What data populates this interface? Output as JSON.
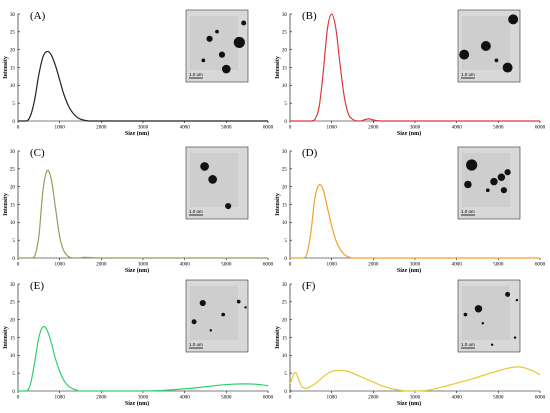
{
  "chart_data": [
    {
      "type": "line",
      "panel": "(A)",
      "color": "#222222",
      "xlabel": "Size (nm)",
      "ylabel": "Intensity",
      "xlim": [
        0,
        6000
      ],
      "ylim": [
        0,
        30
      ],
      "xticks": [
        0,
        1000,
        2000,
        3000,
        4000,
        5000,
        6000
      ],
      "yticks": [
        0,
        5,
        10,
        15,
        20,
        25,
        30
      ],
      "x": [
        0,
        200,
        300,
        400,
        500,
        600,
        700,
        800,
        900,
        1000,
        1100,
        1200,
        1300,
        1400,
        1500,
        1600,
        1700,
        1800,
        2000,
        3000,
        4000,
        5000,
        6000
      ],
      "y": [
        0,
        0,
        1.5,
        6,
        13,
        18,
        19.5,
        18.5,
        15.5,
        11.5,
        7.5,
        4.5,
        2.5,
        1.2,
        0.5,
        0.2,
        0,
        0,
        0,
        0,
        0,
        0,
        0
      ],
      "inset_scale_label": "1.0 um"
    },
    {
      "type": "line",
      "panel": "(B)",
      "color": "#d93a3a",
      "xlabel": "Size (nm)",
      "ylabel": "Intensity",
      "xlim": [
        0,
        6000
      ],
      "ylim": [
        0,
        30
      ],
      "xticks": [
        0,
        1000,
        2000,
        3000,
        4000,
        5000,
        6000
      ],
      "yticks": [
        0,
        5,
        10,
        15,
        20,
        25,
        30
      ],
      "x": [
        0,
        400,
        500,
        600,
        700,
        800,
        900,
        1000,
        1100,
        1200,
        1300,
        1400,
        1500,
        1600,
        1700,
        1800,
        1900,
        2000,
        2200,
        3000,
        4000,
        5000,
        6000
      ],
      "y": [
        0,
        0,
        0,
        0.5,
        4,
        14,
        26,
        30,
        26,
        16,
        7,
        2,
        0.5,
        0,
        0,
        0.4,
        0.6,
        0.3,
        0,
        0,
        0,
        0,
        0
      ],
      "inset_scale_label": "1.0 um"
    },
    {
      "type": "line",
      "panel": "(C)",
      "color": "#9a9a5a",
      "xlabel": "Size (nm)",
      "ylabel": "Intensity",
      "xlim": [
        0,
        6000
      ],
      "ylim": [
        0,
        30
      ],
      "xticks": [
        0,
        1000,
        2000,
        3000,
        4000,
        5000,
        6000
      ],
      "yticks": [
        0,
        5,
        10,
        15,
        20,
        25,
        30
      ],
      "x": [
        0,
        300,
        400,
        500,
        600,
        700,
        800,
        900,
        1000,
        1100,
        1200,
        1300,
        1400,
        1500,
        1600,
        2000,
        3000,
        4000,
        5000,
        6000
      ],
      "y": [
        0,
        0,
        0.5,
        6,
        19,
        24.5,
        22,
        14,
        6,
        2,
        0.5,
        0,
        0,
        0,
        0.2,
        0,
        0,
        0,
        0,
        0
      ],
      "inset_scale_label": "1.0 um"
    },
    {
      "type": "line",
      "panel": "(D)",
      "color": "#f0a030",
      "xlabel": "Size (nm)",
      "ylabel": "Intensity",
      "xlim": [
        0,
        6000
      ],
      "ylim": [
        0,
        30
      ],
      "xticks": [
        0,
        1000,
        2000,
        3000,
        4000,
        5000,
        6000
      ],
      "yticks": [
        0,
        5,
        10,
        15,
        20,
        25,
        30
      ],
      "x": [
        0,
        300,
        400,
        500,
        600,
        700,
        800,
        900,
        1000,
        1100,
        1200,
        1300,
        1400,
        1500,
        1600,
        2000,
        3000,
        4000,
        5000,
        6000
      ],
      "y": [
        0,
        0,
        1,
        7,
        17,
        20.5,
        19,
        14,
        9,
        5,
        2.5,
        1,
        0.3,
        0,
        0,
        0,
        0,
        0,
        0,
        0
      ],
      "inset_scale_label": "1.0 um"
    },
    {
      "type": "line",
      "panel": "(E)",
      "color": "#2fd06a",
      "xlabel": "Size (nm)",
      "ylabel": "Intensity",
      "xlim": [
        0,
        6000
      ],
      "ylim": [
        0,
        30
      ],
      "xticks": [
        0,
        1000,
        2000,
        3000,
        4000,
        5000,
        6000
      ],
      "yticks": [
        0,
        5,
        10,
        15,
        20,
        25,
        30
      ],
      "x": [
        0,
        200,
        300,
        400,
        500,
        600,
        700,
        800,
        900,
        1000,
        1100,
        1200,
        1300,
        1400,
        1500,
        2000,
        3000,
        3500,
        4000,
        4500,
        5000,
        5500,
        5800,
        6000
      ],
      "y": [
        0,
        0,
        2,
        8,
        15,
        18,
        17,
        13.5,
        9,
        5.5,
        3,
        1.5,
        0.7,
        0.3,
        0,
        0,
        0,
        0.2,
        0.6,
        1.2,
        1.8,
        2,
        1.8,
        1.5
      ],
      "inset_scale_label": "1.0 um"
    },
    {
      "type": "line",
      "panel": "(F)",
      "color": "#e8c832",
      "xlabel": "Size (nm)",
      "ylabel": "Intensity",
      "xlim": [
        0,
        6000
      ],
      "ylim": [
        0,
        30
      ],
      "xticks": [
        0,
        1000,
        2000,
        3000,
        4000,
        5000,
        6000
      ],
      "yticks": [
        0,
        5,
        10,
        15,
        20,
        25,
        30
      ],
      "x": [
        0,
        50,
        100,
        150,
        200,
        250,
        300,
        400,
        600,
        800,
        1000,
        1200,
        1400,
        1600,
        1800,
        2000,
        2200,
        2400,
        2600,
        2800,
        3000,
        3300,
        3600,
        4000,
        4400,
        4800,
        5200,
        5500,
        5800,
        6000
      ],
      "y": [
        2,
        3.5,
        5,
        5,
        3.5,
        2,
        1,
        0.8,
        2,
        4,
        5.5,
        5.8,
        5.5,
        4.5,
        3.5,
        2.5,
        1.5,
        0.8,
        0.3,
        0,
        0,
        0.2,
        1,
        2.2,
        3.5,
        5,
        6.3,
        6.8,
        5.8,
        4.5
      ],
      "inset_scale_label": "1.0 um"
    }
  ]
}
